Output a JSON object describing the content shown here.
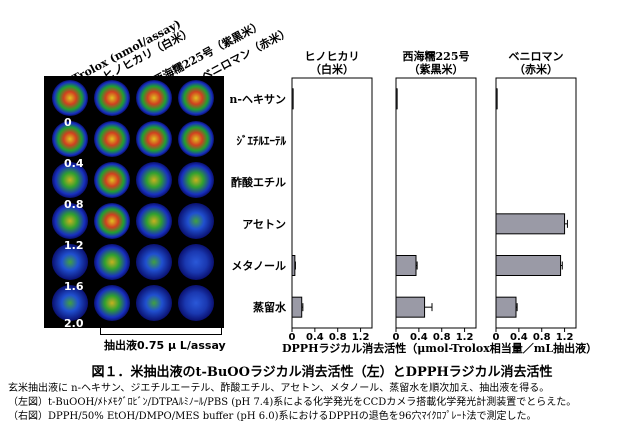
{
  "plate": {
    "column_headers": [
      "Trolox (nmol/assay)",
      "ヒノヒカリ（白米）",
      "西海糯225号（紫黒米）",
      "ベニロマン（赤米）"
    ],
    "row_labels": [
      "0",
      "0.4",
      "0.8",
      "1.2",
      "1.6",
      "2.0"
    ],
    "caption": "抽出液0.75 μ L/assay"
  },
  "chart_data": [
    {
      "type": "bar",
      "orientation": "horizontal",
      "title": "ヒノヒカリ（白米）",
      "categories": [
        "n-ヘキサン",
        "ｼﾞｴﾁﾙｴｰﾃﾙ",
        "酢酸エチル",
        "アセトン",
        "メタノール",
        "蒸留水"
      ],
      "values": [
        0.02,
        0,
        0,
        0,
        0.05,
        0.17
      ],
      "errors": [
        0,
        0,
        0,
        0,
        0.01,
        0.02
      ],
      "xlim": [
        0,
        1.4
      ],
      "xticks": [
        "0",
        "0.4",
        "0.8",
        "1.2"
      ],
      "xtick_values": [
        0,
        0.4,
        0.8,
        1.2
      ]
    },
    {
      "type": "bar",
      "orientation": "horizontal",
      "title": "西海糯225号（紫黒米）",
      "categories": [
        "n-ヘキサン",
        "ｼﾞｴﾁﾙｴｰﾃﾙ",
        "酢酸エチル",
        "アセトン",
        "メタノール",
        "蒸留水"
      ],
      "values": [
        0.02,
        0,
        0,
        0,
        0.35,
        0.5
      ],
      "errors": [
        0,
        0,
        0,
        0,
        0.02,
        0.13
      ],
      "xlim": [
        0,
        1.4
      ],
      "xticks": [
        "0",
        "0.4",
        "0.8",
        "1.2"
      ],
      "xtick_values": [
        0,
        0.4,
        0.8,
        1.2
      ]
    },
    {
      "type": "bar",
      "orientation": "horizontal",
      "title": "ベニロマン（赤米）",
      "categories": [
        "n-ヘキサン",
        "ｼﾞｴﾁﾙｴｰﾃﾙ",
        "酢酸エチル",
        "アセトン",
        "メタノール",
        "蒸留水"
      ],
      "values": [
        0.02,
        0,
        0,
        1.2,
        1.13,
        0.35
      ],
      "errors": [
        0,
        0,
        0,
        0.05,
        0.03,
        0.02
      ],
      "xlim": [
        0,
        1.4
      ],
      "xticks": [
        "0",
        "0.4",
        "0.8",
        "1.2"
      ],
      "xtick_values": [
        0,
        0.4,
        0.8,
        1.2
      ]
    }
  ],
  "shared_xlabel": "DPPHラジカル消去活性（μmol-Trolox相当量／mL抽出液）",
  "bar_color": "#9a9aa6",
  "caption": {
    "title": "図１．米抽出液のt-BuOOラジカル消去活性（左）とDPPHラジカル消去活性",
    "line1": "玄米抽出液に n-ヘキサン、ジエチルエーテル、酢酸エチル、アセトン、メタノール、蒸留水を順次加え、抽出液を得る。",
    "line2": "（左図）t-BuOOH/ﾒﾄﾒﾓｸﾞﾛﾋﾞﾝ/DTPAﾙﾐﾉｰﾙ/PBS (pH 7.4)系による化学発光をCCDカメラ搭載化学発光計測装置でとらえた。",
    "line3": "（右図）DPPH/50% EtOH/DMPO/MES buffer (pH 6.0)系におけるDPPHの退色を96穴ﾏｲｸﾛﾌﾟﾚｰﾄ法で測定した。"
  }
}
